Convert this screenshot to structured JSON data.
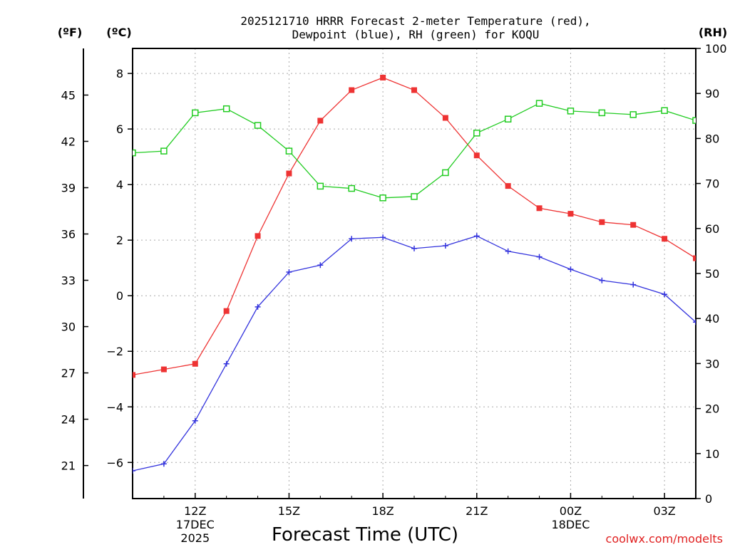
{
  "chart_data": {
    "type": "line",
    "title": "2025121710 HRRR Forecast 2-meter Temperature (red),",
    "subtitle": "Dewpoint (blue), RH (green) for KOQU",
    "xlabel": "Forecast Time (UTC)",
    "units": {
      "fahrenheit": "(ºF)",
      "celsius": "(ºC)",
      "rh": "(RH)"
    },
    "credit": "coolwx.com/modelts",
    "x_hours": [
      10,
      11,
      12,
      13,
      14,
      15,
      16,
      17,
      18,
      19,
      20,
      21,
      22,
      23,
      24,
      25,
      26,
      27,
      28
    ],
    "xlim": [
      10,
      28
    ],
    "x_ticks": [
      {
        "hour": 12,
        "label": "12Z",
        "date": "17DEC",
        "year": "2025"
      },
      {
        "hour": 15,
        "label": "15Z"
      },
      {
        "hour": 18,
        "label": "18Z"
      },
      {
        "hour": 21,
        "label": "21Z"
      },
      {
        "hour": 24,
        "label": "00Z",
        "date": "18DEC"
      },
      {
        "hour": 27,
        "label": "03Z"
      }
    ],
    "y_celsius_ticks": [
      "8",
      "6",
      "4",
      "2",
      "0",
      "−2",
      "−4",
      "−6"
    ],
    "y_celsius_values": [
      8,
      6,
      4,
      2,
      0,
      -2,
      -4,
      -6
    ],
    "ylim_celsius": [
      -7.3,
      8.9
    ],
    "y_fahrenheit_ticks": [
      "45",
      "42",
      "39",
      "36",
      "33",
      "30",
      "27",
      "24",
      "21"
    ],
    "y_fahrenheit_values": [
      45,
      42,
      39,
      36,
      33,
      30,
      27,
      24,
      21
    ],
    "y_rh_ticks": [
      "0",
      "10",
      "20",
      "30",
      "40",
      "50",
      "60",
      "70",
      "80",
      "90",
      "100"
    ],
    "y_rh_values": [
      0,
      10,
      20,
      30,
      40,
      50,
      60,
      70,
      80,
      90,
      100
    ],
    "ylim_rh": [
      0,
      100
    ],
    "series": [
      {
        "name": "Temperature",
        "axis": "celsius",
        "color": "#ee3333",
        "marker": "filled-square",
        "values": [
          -2.85,
          -2.65,
          -2.45,
          -0.55,
          2.15,
          4.4,
          6.3,
          7.4,
          7.85,
          7.4,
          6.4,
          5.05,
          3.95,
          3.15,
          2.95,
          2.65,
          2.55,
          2.05,
          1.35
        ]
      },
      {
        "name": "Dewpoint",
        "axis": "celsius",
        "color": "#3333dd",
        "marker": "plus",
        "values": [
          -6.3,
          -6.05,
          -4.5,
          -2.45,
          -0.4,
          0.85,
          1.1,
          2.05,
          2.1,
          1.7,
          1.8,
          2.15,
          1.6,
          1.4,
          0.95,
          0.55,
          0.4,
          0.05,
          -0.95
        ]
      },
      {
        "name": "RH",
        "axis": "rh",
        "color": "#22cc22",
        "marker": "open-square",
        "values": [
          76.8,
          77.2,
          85.7,
          86.6,
          82.9,
          77.2,
          69.4,
          68.9,
          66.8,
          67.1,
          72.4,
          81.2,
          84.3,
          87.8,
          86.1,
          85.7,
          85.3,
          86.2,
          84.0
        ]
      }
    ]
  }
}
